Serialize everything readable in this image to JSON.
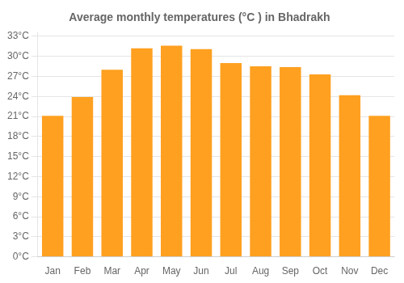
{
  "chart_data": {
    "type": "bar",
    "title": "Average monthly temperatures (°C ) in Bhadrakh",
    "categories": [
      "Jan",
      "Feb",
      "Mar",
      "Apr",
      "May",
      "Jun",
      "Jul",
      "Aug",
      "Sep",
      "Oct",
      "Nov",
      "Dec"
    ],
    "values": [
      21.1,
      23.9,
      28.0,
      31.2,
      31.6,
      31.1,
      29.0,
      28.5,
      28.4,
      27.3,
      24.2,
      21.1
    ],
    "color": "#FFA020",
    "ylim": [
      0,
      33.5
    ],
    "yticks": [
      {
        "value": 0,
        "label": "0°C"
      },
      {
        "value": 3,
        "label": "3°C"
      },
      {
        "value": 6,
        "label": "6°C"
      },
      {
        "value": 9,
        "label": "9°C"
      },
      {
        "value": 12,
        "label": "12°C"
      },
      {
        "value": 15,
        "label": "15°C"
      },
      {
        "value": 18,
        "label": "18°C"
      },
      {
        "value": 21,
        "label": "21°C"
      },
      {
        "value": 24,
        "label": "24°C"
      },
      {
        "value": 27,
        "label": "27°C"
      },
      {
        "value": 30,
        "label": "30°C"
      },
      {
        "value": 33,
        "label": "33°C"
      }
    ],
    "grid": true
  }
}
